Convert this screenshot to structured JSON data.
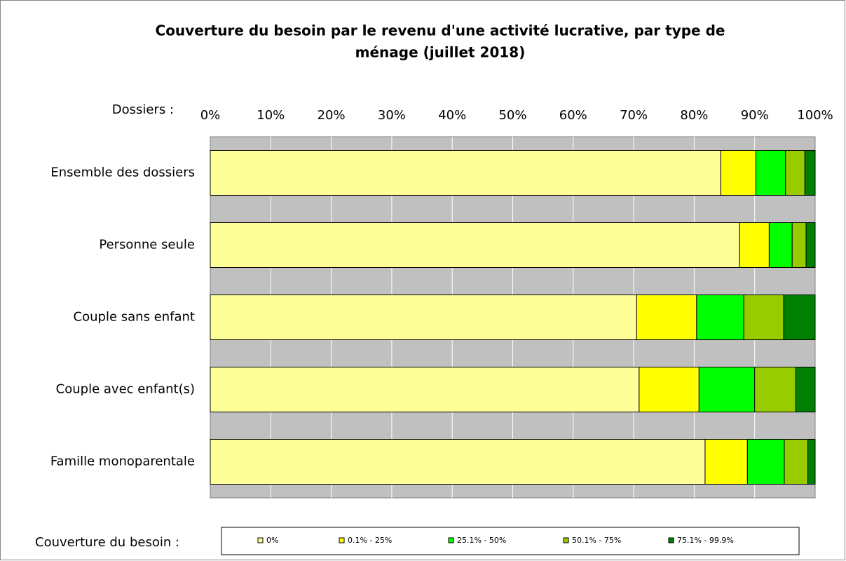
{
  "chart_data": {
    "type": "stacked-barh",
    "title": "Couverture du besoin par le revenu d'une activité lucrative, par type de",
    "subtitle": "ménage (juillet 2018)",
    "y_label": "Dossiers :",
    "legend_title": "Couverture du besoin :",
    "categories": [
      "Ensemble des dossiers",
      "Personne seule",
      "Couple sans enfant",
      "Couple avec enfant(s)",
      "Famille monoparentale"
    ],
    "series": [
      {
        "name": "0%",
        "color": "#ffff99",
        "values": [
          84.4,
          87.5,
          70.5,
          70.9,
          81.8
        ]
      },
      {
        "name": "0.1% - 25%",
        "color": "#ffff00",
        "values": [
          5.8,
          4.9,
          9.9,
          9.9,
          7.0
        ]
      },
      {
        "name": "25.1% - 50%",
        "color": "#00ff00",
        "values": [
          4.9,
          3.8,
          7.8,
          9.2,
          6.1
        ]
      },
      {
        "name": "50.1% - 75%",
        "color": "#99cc00",
        "values": [
          3.2,
          2.3,
          6.6,
          6.8,
          3.9
        ]
      },
      {
        "name": "75.1% - 99.9%",
        "color": "#008000",
        "values": [
          1.7,
          1.5,
          5.2,
          3.2,
          1.2
        ]
      }
    ],
    "xlim": [
      0,
      100
    ],
    "xticks": [
      {
        "value": 0,
        "label": "0%"
      },
      {
        "value": 10,
        "label": "10%"
      },
      {
        "value": 20,
        "label": "20%"
      },
      {
        "value": 30,
        "label": "30%"
      },
      {
        "value": 40,
        "label": "40%"
      },
      {
        "value": 50,
        "label": "50%"
      },
      {
        "value": 60,
        "label": "60%"
      },
      {
        "value": 70,
        "label": "70%"
      },
      {
        "value": 80,
        "label": "80%"
      },
      {
        "value": 90,
        "label": "90%"
      },
      {
        "value": 100,
        "label": "100%"
      }
    ],
    "grid": true
  }
}
